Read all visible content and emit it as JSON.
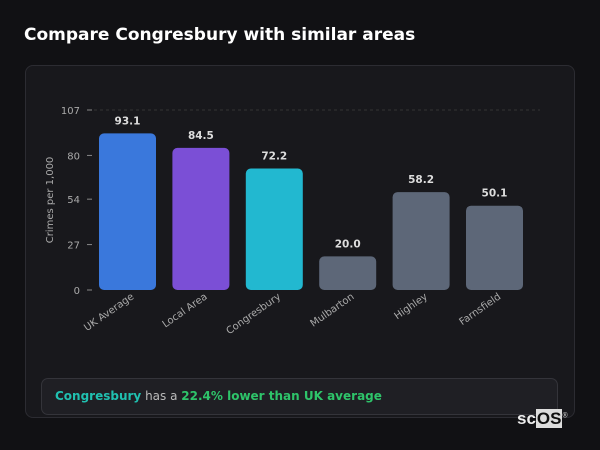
{
  "title": "Compare Congresbury with similar areas",
  "chart_data": {
    "type": "bar",
    "ylabel": "Crimes per 1,000",
    "xlabel": "",
    "ylim": [
      0,
      107
    ],
    "yticks": [
      0,
      27,
      54,
      80,
      107
    ],
    "categories": [
      "UK Average",
      "Local Area",
      "Congresbury",
      "Mulbarton",
      "Highley",
      "Farnsfield"
    ],
    "values": [
      93.1,
      84.5,
      72.2,
      20.0,
      58.2,
      50.1
    ],
    "value_labels": [
      "93.1",
      "84.5",
      "72.2",
      "20.0",
      "58.2",
      "50.1"
    ],
    "colors": [
      "#3a78dc",
      "#7b4fd6",
      "#22b8d0",
      "#5d6778",
      "#5d6778",
      "#5d6778"
    ],
    "grid": "top dashed line only"
  },
  "summary": {
    "area": "Congresbury",
    "middle": " has a ",
    "comparison": "22.4% lower than UK average"
  },
  "watermark": "scOS"
}
